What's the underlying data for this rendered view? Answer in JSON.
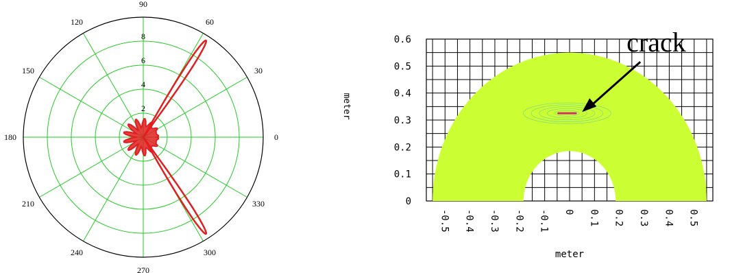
{
  "chart_data": [
    {
      "type": "line",
      "subtype": "polar",
      "title": "",
      "angle_ticks": [
        "0",
        "30",
        "60",
        "90",
        "120",
        "150",
        "180",
        "210",
        "240",
        "270",
        "300",
        "330"
      ],
      "radial_ticks": [
        "2",
        "4",
        "6",
        "8"
      ],
      "rlim": [
        0,
        10
      ],
      "grid": true,
      "colors": {
        "grid": "#22cc22",
        "series": "#e02020",
        "frame": "#000000"
      },
      "series": [
        {
          "lobes": [
            {
              "angle_deg": 57,
              "peak": 9.6,
              "half_width_deg": 3
            },
            {
              "angle_deg": 303,
              "peak": 9.6,
              "half_width_deg": 3
            }
          ],
          "central_radius": 1.4
        }
      ]
    },
    {
      "type": "heatmap",
      "subtype": "semicircular-annulus",
      "xlabel": "meter",
      "ylabel": "meter",
      "x_ticks": [
        "-0.5",
        "-0.4",
        "-0.3",
        "-0.2",
        "-0.1",
        "0",
        "0.1",
        "0.2",
        "0.3",
        "0.4",
        "0.5"
      ],
      "y_ticks": [
        "0",
        "0.1",
        "0.2",
        "0.3",
        "0.4",
        "0.5",
        "0.6"
      ],
      "xlim": [
        -0.575,
        0.575
      ],
      "ylim": [
        0,
        0.6
      ],
      "grid": true,
      "annulus": {
        "inner_radius": 0.185,
        "outer_radius": 0.55,
        "center": [
          0,
          0
        ]
      },
      "crack": {
        "x": -0.01,
        "y": 0.325,
        "half_length": 0.035
      },
      "annotation": {
        "text": "crack",
        "target": [
          0.05,
          0.33
        ]
      },
      "colors": {
        "fill": "#ccff33",
        "grid": "#000000",
        "crack": "#cc3366",
        "wave": "#66cc99"
      }
    }
  ]
}
